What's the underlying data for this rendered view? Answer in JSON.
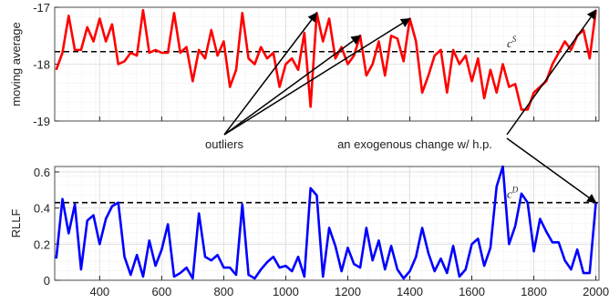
{
  "chart_data": [
    {
      "type": "line",
      "ylabel": "moving average",
      "x": [
        260,
        280,
        300,
        320,
        340,
        360,
        380,
        400,
        420,
        440,
        460,
        480,
        500,
        520,
        540,
        560,
        580,
        600,
        620,
        640,
        660,
        680,
        700,
        720,
        740,
        760,
        780,
        800,
        820,
        840,
        860,
        880,
        900,
        920,
        940,
        960,
        980,
        1000,
        1020,
        1040,
        1060,
        1080,
        1100,
        1120,
        1140,
        1160,
        1180,
        1200,
        1220,
        1240,
        1260,
        1280,
        1300,
        1320,
        1340,
        1360,
        1380,
        1400,
        1420,
        1440,
        1460,
        1480,
        1500,
        1520,
        1540,
        1560,
        1580,
        1600,
        1620,
        1640,
        1660,
        1680,
        1700,
        1720,
        1740,
        1760,
        1780,
        1800,
        1820,
        1840,
        1860,
        1880,
        1900,
        1920,
        1940,
        1960,
        1980,
        2000
      ],
      "series": [
        {
          "color": "#ff0000",
          "values": [
            -18.1,
            -17.8,
            -17.15,
            -17.75,
            -17.75,
            -17.35,
            -17.6,
            -17.2,
            -17.6,
            -17.3,
            -18.0,
            -17.95,
            -17.8,
            -17.85,
            -17.05,
            -17.8,
            -17.75,
            -17.8,
            -17.8,
            -17.1,
            -17.8,
            -17.7,
            -18.3,
            -17.75,
            -17.9,
            -17.4,
            -17.85,
            -17.6,
            -18.4,
            -18.1,
            -17.1,
            -17.9,
            -18.0,
            -17.7,
            -17.9,
            -17.8,
            -18.4,
            -18.0,
            -17.9,
            -18.1,
            -17.45,
            -18.75,
            -17.1,
            -17.6,
            -17.2,
            -17.9,
            -17.7,
            -18.0,
            -17.85,
            -17.5,
            -18.2,
            -18.0,
            -17.6,
            -18.2,
            -17.5,
            -17.55,
            -17.95,
            -17.2,
            -17.6,
            -18.5,
            -18.2,
            -17.85,
            -17.75,
            -18.5,
            -17.75,
            -18.0,
            -17.85,
            -18.3,
            -17.9,
            -18.6,
            -18.1,
            -18.5,
            -18.0,
            -18.4,
            -18.35,
            -18.8,
            -18.8,
            -18.5,
            -18.4,
            -18.3,
            -18.0,
            -17.8,
            -17.6,
            -17.75,
            -17.5,
            -17.4,
            -17.9,
            -17.05
          ]
        }
      ],
      "threshold": -17.78,
      "threshold_label": {
        "base": "c",
        "sup": "S"
      },
      "xlim": [
        255,
        2010
      ],
      "xticks": [
        400,
        600,
        800,
        1000,
        1200,
        1400,
        1600,
        1800,
        2000
      ],
      "ylim": [
        -19,
        -17
      ],
      "yticks": [
        -17,
        -18,
        -19
      ],
      "grid": true
    },
    {
      "type": "line",
      "ylabel": "RLLF",
      "x": [
        260,
        280,
        300,
        320,
        340,
        360,
        380,
        400,
        420,
        440,
        460,
        480,
        500,
        520,
        540,
        560,
        580,
        600,
        620,
        640,
        660,
        680,
        700,
        720,
        740,
        760,
        780,
        800,
        820,
        840,
        860,
        880,
        900,
        920,
        940,
        960,
        980,
        1000,
        1020,
        1040,
        1060,
        1080,
        1100,
        1120,
        1140,
        1160,
        1180,
        1200,
        1220,
        1240,
        1260,
        1280,
        1300,
        1320,
        1340,
        1360,
        1380,
        1400,
        1420,
        1440,
        1460,
        1480,
        1500,
        1520,
        1540,
        1560,
        1580,
        1600,
        1620,
        1640,
        1660,
        1680,
        1700,
        1720,
        1740,
        1760,
        1780,
        1800,
        1820,
        1840,
        1860,
        1880,
        1900,
        1920,
        1940,
        1960,
        1980,
        2000
      ],
      "series": [
        {
          "color": "#0000ff",
          "values": [
            0.12,
            0.45,
            0.26,
            0.42,
            0.06,
            0.33,
            0.36,
            0.2,
            0.34,
            0.41,
            0.43,
            0.13,
            0.03,
            0.14,
            0.02,
            0.22,
            0.08,
            0.17,
            0.31,
            0.02,
            0.04,
            0.07,
            0.01,
            0.37,
            0.13,
            0.11,
            0.14,
            0.07,
            0.07,
            0.03,
            0.42,
            0.03,
            0.01,
            0.06,
            0.1,
            0.13,
            0.07,
            0.08,
            0.05,
            0.13,
            0.02,
            0.51,
            0.47,
            0.02,
            0.29,
            0.19,
            0.05,
            0.18,
            0.09,
            0.07,
            0.29,
            0.11,
            0.22,
            0.06,
            0.19,
            0.06,
            0.01,
            0.05,
            0.13,
            0.29,
            0.15,
            0.05,
            0.12,
            0.04,
            0.19,
            0.02,
            0.06,
            0.2,
            0.23,
            0.08,
            0.18,
            0.52,
            0.63,
            0.2,
            0.3,
            0.48,
            0.43,
            0.16,
            0.34,
            0.27,
            0.21,
            0.21,
            0.11,
            0.06,
            0.17,
            0.04,
            0.04,
            0.43
          ]
        }
      ],
      "threshold": 0.43,
      "threshold_label": {
        "base": "c",
        "sup": "D"
      },
      "xlim": [
        255,
        2010
      ],
      "xticks": [
        400,
        600,
        800,
        1000,
        1200,
        1400,
        1600,
        1800,
        2000
      ],
      "ylim": [
        0,
        0.63
      ],
      "yticks": [
        0,
        0.2,
        0.4,
        0.6
      ],
      "grid": true
    }
  ],
  "annotations": [
    {
      "text": "outliers"
    },
    {
      "text": "an exogenous change w/ h.p."
    }
  ]
}
